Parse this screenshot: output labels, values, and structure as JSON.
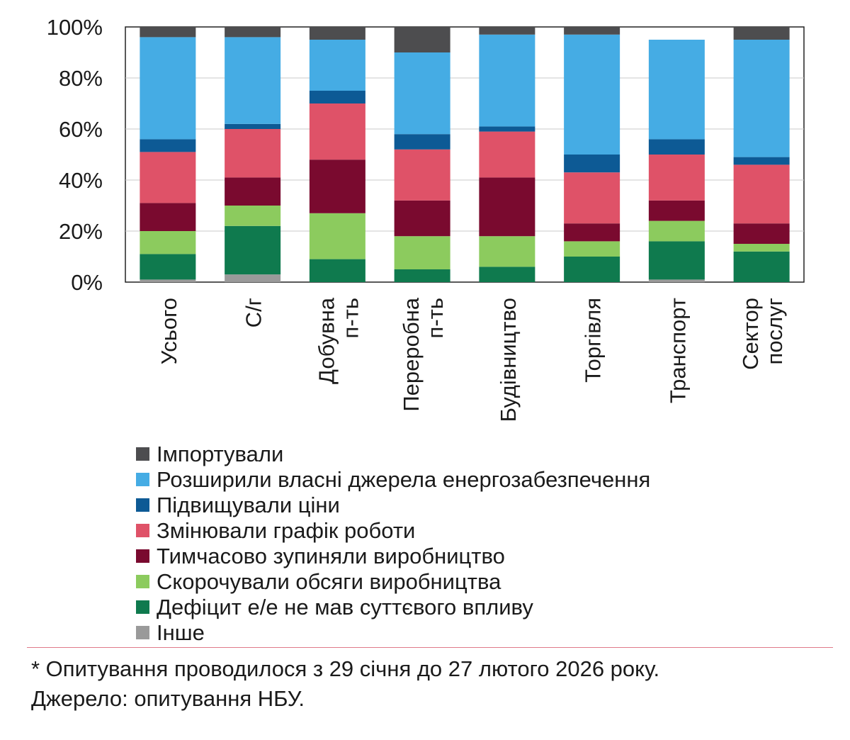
{
  "chart_data": {
    "type": "bar",
    "stacked": true,
    "categories": [
      [
        "Усього"
      ],
      [
        "С/г"
      ],
      [
        "Добувна",
        "п-ть"
      ],
      [
        "Переробна",
        "п-ть"
      ],
      [
        "Будівництво"
      ],
      [
        "Торгівля"
      ],
      [
        "Транспорт"
      ],
      [
        "Сектор",
        "послуг"
      ]
    ],
    "yticks": [
      "0%",
      "20%",
      "40%",
      "60%",
      "80%",
      "100%"
    ],
    "ylim": [
      0,
      100
    ],
    "grid": true,
    "legend_position": "bottom",
    "series": [
      {
        "name": "Інше",
        "color": "#9a9a9a",
        "values": [
          1,
          3,
          0,
          0,
          0,
          0,
          1,
          0
        ]
      },
      {
        "name": "Дефіцит е/е не мав суттєвого впливу",
        "color": "#0f7a4e",
        "values": [
          10,
          19,
          9,
          5,
          6,
          10,
          15,
          12
        ]
      },
      {
        "name": "Скорочували обсяги виробництва",
        "color": "#8ccb5e",
        "values": [
          9,
          8,
          18,
          13,
          12,
          6,
          8,
          3
        ]
      },
      {
        "name": "Тимчасово зупиняли виробництво",
        "color": "#7a0a2f",
        "values": [
          11,
          11,
          21,
          14,
          23,
          7,
          8,
          8
        ]
      },
      {
        "name": "Змінювали графік роботи",
        "color": "#df5268",
        "values": [
          20,
          19,
          22,
          20,
          18,
          20,
          18,
          23
        ]
      },
      {
        "name": "Підвищували ціни",
        "color": "#0d5a95",
        "values": [
          5,
          2,
          5,
          6,
          2,
          7,
          6,
          3
        ]
      },
      {
        "name": "Розширили власні джерела енергозабезпечення",
        "color": "#45ace4",
        "values": [
          40,
          34,
          20,
          32,
          36,
          47,
          39,
          46
        ]
      },
      {
        "name": "Імпортували",
        "color": "#4d4d4f",
        "values": [
          4,
          4,
          5,
          10,
          3,
          3,
          0,
          5
        ]
      }
    ],
    "legend_order": [
      "Імпортували",
      "Розширили власні джерела енергозабезпечення",
      "Підвищували ціни",
      "Змінювали графік роботи",
      "Тимчасово зупиняли виробництво",
      "Скорочували обсяги виробництва",
      "Дефіцит е/е не мав суттєвого впливу",
      "Інше"
    ]
  },
  "notes": {
    "footnote": "* Опитування проводилося з 29 січня до 27 лютого 2026 року.",
    "source": "Джерело: опитування НБУ."
  }
}
